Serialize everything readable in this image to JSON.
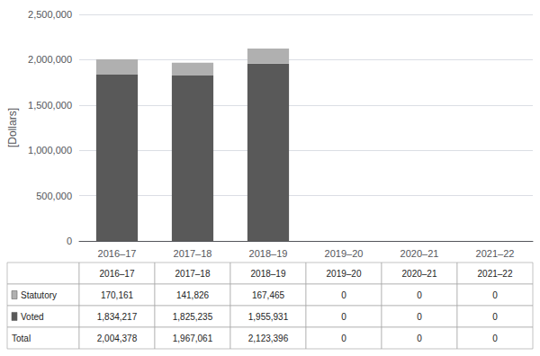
{
  "chart_data": {
    "type": "bar",
    "stacked": true,
    "grid": true,
    "categories": [
      "2016–17",
      "2017–18",
      "2018–19",
      "2019–20",
      "2020–21",
      "2021–22"
    ],
    "ylabel": "[Dollars]",
    "ylim": [
      0,
      2500000
    ],
    "yticks": [
      0,
      {
        "value": 500000,
        "label": "500,000"
      },
      {
        "value": 1000000,
        "label": "1,000,000"
      },
      {
        "value": 1500000,
        "label": "1,500,000"
      },
      {
        "value": 2000000,
        "label": "2,000,000"
      },
      {
        "value": 2500000,
        "label": "2,500,000"
      }
    ],
    "series": [
      {
        "name": "Voted",
        "color": "#595959",
        "values": [
          1834217,
          1825235,
          1955931,
          0,
          0,
          0
        ],
        "value_labels": [
          "1,834,217",
          "1,825,235",
          "1,955,931",
          "0",
          "0",
          "0"
        ]
      },
      {
        "name": "Statutory",
        "color": "#b0b0b0",
        "values": [
          170161,
          141826,
          167465,
          0,
          0,
          0
        ],
        "value_labels": [
          "170,161",
          "141,826",
          "167,465",
          "0",
          "0",
          "0"
        ]
      }
    ],
    "total": {
      "name": "Total",
      "values": [
        2004378,
        1967061,
        2123396,
        0,
        0,
        0
      ],
      "value_labels": [
        "2,004,378",
        "1,967,061",
        "2,123,396",
        "0",
        "0",
        "0"
      ]
    }
  }
}
